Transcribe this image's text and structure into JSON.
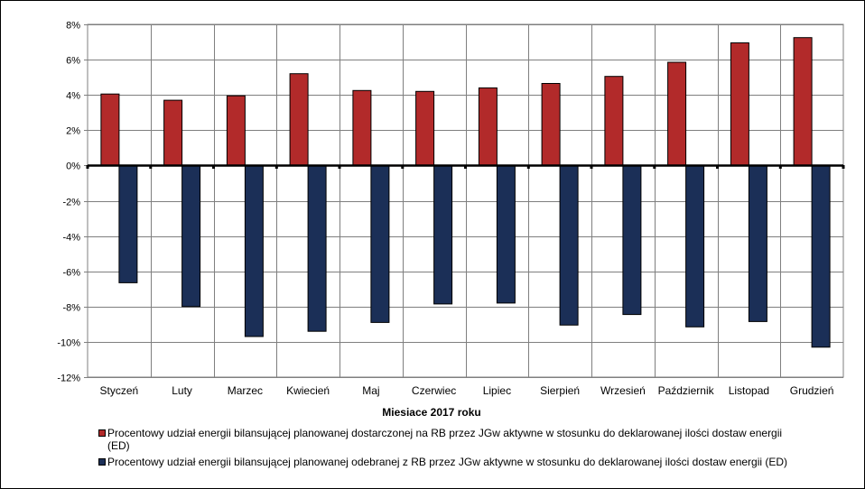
{
  "chart_data": {
    "type": "bar",
    "title": "",
    "xlabel": "Miesiące 2017  roku",
    "ylabel": "",
    "ylim": [
      -12,
      8
    ],
    "y_ticks": [
      "8%",
      "6%",
      "4%",
      "2%",
      "0%",
      "-2%",
      "-4%",
      "-6%",
      "-8%",
      "-10%",
      "-12%"
    ],
    "y_tick_values": [
      8,
      6,
      4,
      2,
      0,
      -2,
      -4,
      -6,
      -8,
      -10,
      -12
    ],
    "grid": "horizontal",
    "legend_position": "bottom",
    "categories": [
      "Styczeń",
      "Luty",
      "Marzec",
      "Kwiecień",
      "Maj",
      "Czerwiec",
      "Lipiec",
      "Sierpień",
      "Wrzesień",
      "Październik",
      "Listopad",
      "Grudzień"
    ],
    "series": [
      {
        "name": "Procentowy udział energii bilansującej planowanej dostarczonej na RB przez JGw aktywne w stosunku do deklarowanej ilości dostaw energii (ED)",
        "color": "#b22a2a",
        "values": [
          4.05,
          3.7,
          3.95,
          5.2,
          4.25,
          4.2,
          4.4,
          4.65,
          5.05,
          5.85,
          6.95,
          7.25
        ]
      },
      {
        "name": "Procentowy udział energii bilansującej planowanej odebranej z RB przez JGw aktywne w stosunku do deklarowanej ilości dostaw energii (ED)",
        "color": "#1b2f57",
        "values": [
          -6.65,
          -8.0,
          -9.7,
          -9.4,
          -8.9,
          -7.85,
          -7.8,
          -9.05,
          -8.45,
          -9.15,
          -8.85,
          -10.3
        ]
      }
    ]
  }
}
